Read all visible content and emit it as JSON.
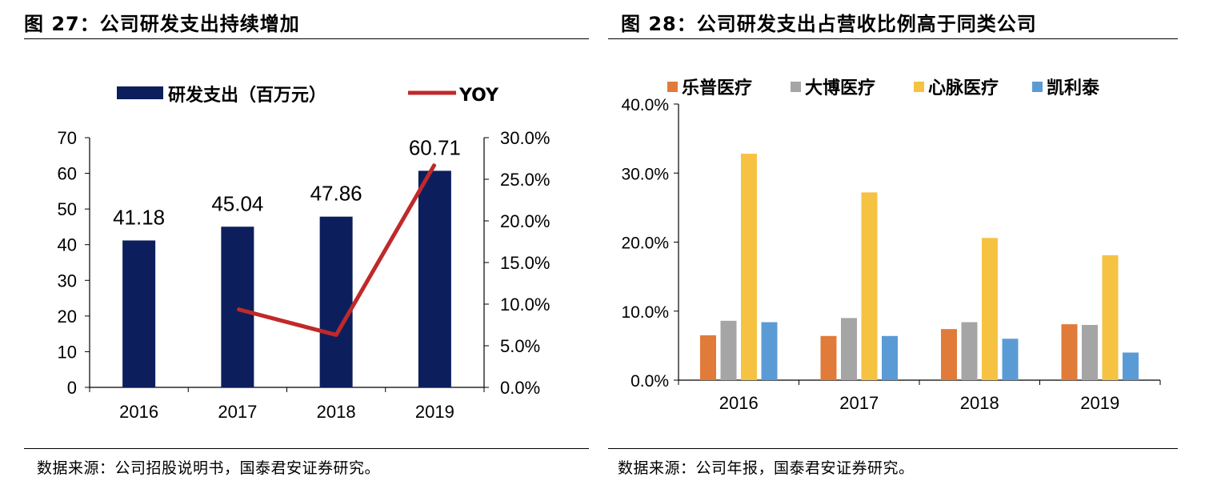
{
  "charts_meta": {
    "left": {
      "title": "图 27：公司研发支出持续增加",
      "source": "数据来源：公司招股说明书，国泰君安证券研究。"
    },
    "right": {
      "title": "图 28：公司研发支出占营收比例高于同类公司",
      "source": "数据来源：公司年报，国泰君安证券研究。"
    }
  },
  "chart_data": [
    {
      "type": "bar",
      "categories": [
        "2016",
        "2017",
        "2018",
        "2019"
      ],
      "series": [
        {
          "name": "研发支出（百万元）",
          "kind": "bar",
          "axis": "left",
          "color": "#0c1f5c",
          "values": [
            41.18,
            45.04,
            47.86,
            60.71
          ],
          "labels": [
            "41.18",
            "45.04",
            "47.86",
            "60.71"
          ]
        },
        {
          "name": "YOY",
          "kind": "line",
          "axis": "right",
          "color": "#c0292a",
          "values": [
            null,
            9.4,
            6.3,
            26.8
          ]
        }
      ],
      "ylim": [
        0,
        70
      ],
      "yticks": [
        "0",
        "10",
        "20",
        "30",
        "40",
        "50",
        "60",
        "70"
      ],
      "y2lim": [
        0,
        30
      ],
      "y2ticks": [
        "0.0%",
        "5.0%",
        "10.0%",
        "15.0%",
        "20.0%",
        "25.0%",
        "30.0%"
      ],
      "legend": "top"
    },
    {
      "type": "bar",
      "categories": [
        "2016",
        "2017",
        "2018",
        "2019"
      ],
      "series": [
        {
          "name": "乐普医疗",
          "color": "#e07b39",
          "values": [
            6.5,
            6.4,
            7.4,
            8.1
          ]
        },
        {
          "name": "大博医疗",
          "color": "#a5a5a5",
          "values": [
            8.6,
            9.0,
            8.4,
            8.0
          ]
        },
        {
          "name": "心脉医疗",
          "color": "#f5c242",
          "values": [
            32.8,
            27.2,
            20.6,
            18.1
          ]
        },
        {
          "name": "凯利泰",
          "color": "#5b9bd5",
          "values": [
            8.4,
            6.4,
            6.0,
            4.0
          ]
        }
      ],
      "ylim": [
        0,
        40
      ],
      "yticks": [
        "0.0%",
        "10.0%",
        "20.0%",
        "30.0%",
        "40.0%"
      ],
      "legend": "top"
    }
  ]
}
